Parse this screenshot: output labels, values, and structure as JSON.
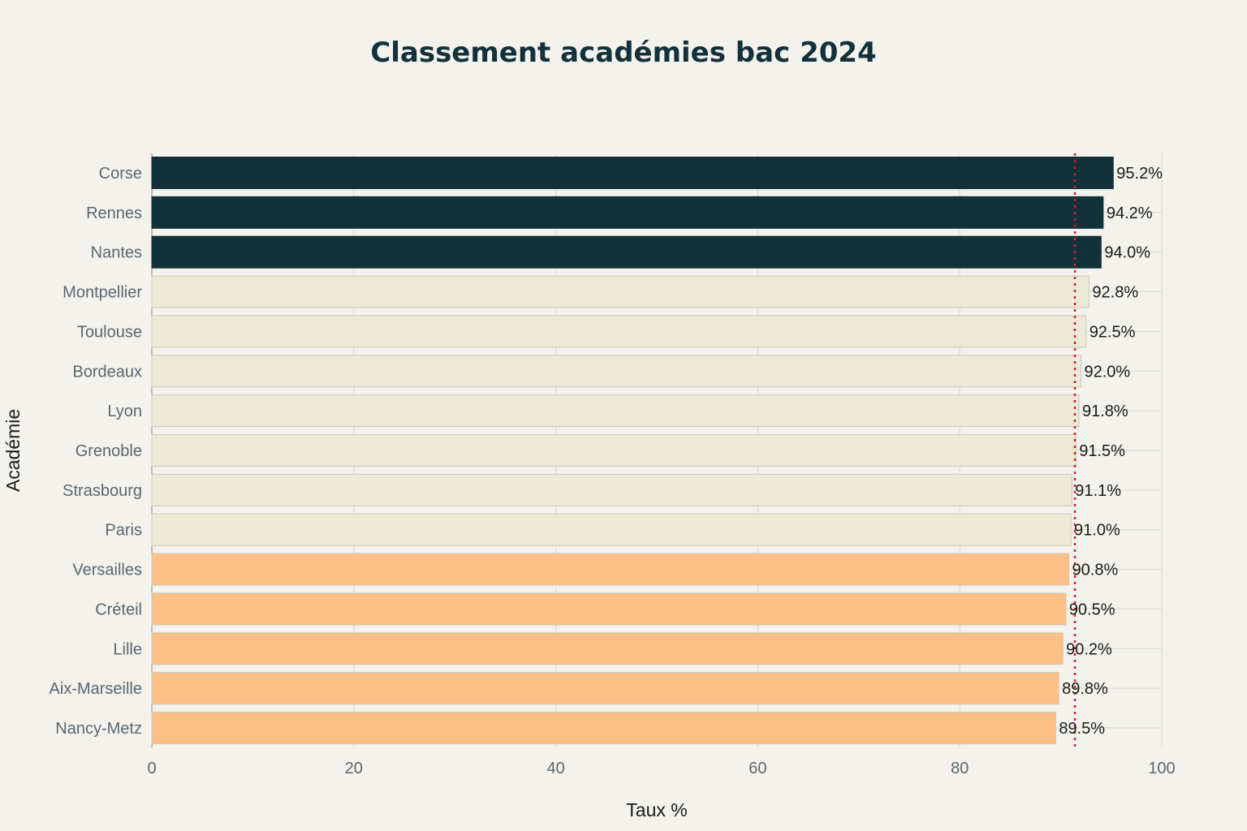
{
  "colors": {
    "background": "#f3f2ec",
    "top3": "#13313b",
    "middle": "#ecead6",
    "bottom5": "#fec087",
    "reference_line": "#d21f2b",
    "grid": "#d9d9d4",
    "bar_outline": "#c9c8b8"
  },
  "chart_data": {
    "type": "bar",
    "orientation": "horizontal",
    "title": "Classement académies bac 2024",
    "xlabel": "Taux %",
    "ylabel": "Académie",
    "xlim": [
      0,
      100
    ],
    "xticks": [
      0,
      20,
      40,
      60,
      80,
      100
    ],
    "grid": true,
    "value_label_suffix": "%",
    "reference_line": {
      "x": 91.4,
      "style": "dotted",
      "color": "#d21f2b"
    },
    "categories": [
      "Corse",
      "Rennes",
      "Nantes",
      "Montpellier",
      "Toulouse",
      "Bordeaux",
      "Lyon",
      "Grenoble",
      "Strasbourg",
      "Paris",
      "Versailles",
      "Créteil",
      "Lille",
      "Aix-Marseille",
      "Nancy-Metz"
    ],
    "values": [
      95.2,
      94.2,
      94.0,
      92.8,
      92.5,
      92.0,
      91.8,
      91.5,
      91.1,
      91.0,
      90.8,
      90.5,
      90.2,
      89.8,
      89.5
    ],
    "value_labels": [
      "95.2%",
      "94.2%",
      "94.0%",
      "92.8%",
      "92.5%",
      "92.0%",
      "91.8%",
      "91.5%",
      "91.1%",
      "91.0%",
      "90.8%",
      "90.5%",
      "90.2%",
      "89.8%",
      "89.5%"
    ],
    "bar_groups": [
      "top3",
      "top3",
      "top3",
      "middle",
      "middle",
      "middle",
      "middle",
      "middle",
      "middle",
      "middle",
      "bottom5",
      "bottom5",
      "bottom5",
      "bottom5",
      "bottom5"
    ]
  }
}
